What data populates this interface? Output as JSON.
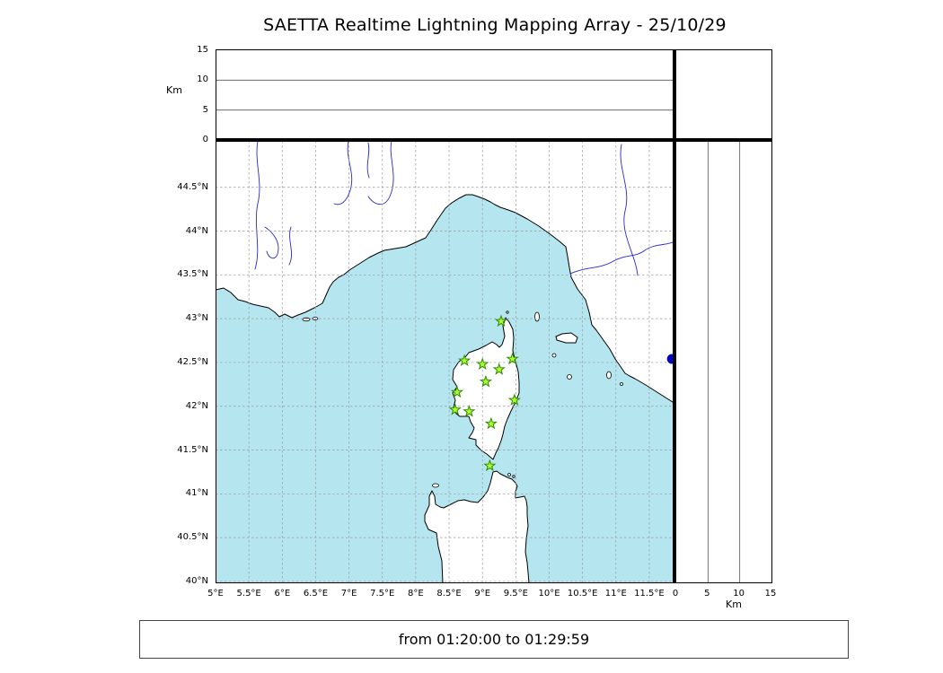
{
  "title": "SAETTA Realtime Lightning Mapping Array - 25/10/29",
  "footer": {
    "text": "from 01:20:00 to 01:29:59"
  },
  "chart_data": {
    "type": "map",
    "title": "SAETTA Realtime Lightning Mapping Array - 25/10/29",
    "time_window": {
      "from": "01:20:00",
      "to": "01:29:59"
    },
    "map": {
      "lon_ticks": [
        5,
        5.5,
        6,
        6.5,
        7,
        7.5,
        8,
        8.5,
        9,
        9.5,
        10,
        10.5,
        11,
        11.5
      ],
      "lon_tick_labels": [
        "5°E",
        "5.5°E",
        "6°E",
        "6.5°E",
        "7°E",
        "7.5°E",
        "8°E",
        "8.5°E",
        "9°E",
        "9.5°E",
        "10°E",
        "10.5°E",
        "11°E",
        "11.5°E"
      ],
      "lat_ticks": [
        40,
        40.5,
        41,
        41.5,
        42,
        42.5,
        43,
        43.5,
        44,
        44.5
      ],
      "lat_tick_labels": [
        "40°N",
        "40.5°N",
        "41°N",
        "41.5°N",
        "42°N",
        "42.5°N",
        "43°N",
        "43.5°N",
        "44°N",
        "44.5°N"
      ],
      "lon_range": [
        5.0,
        11.89
      ],
      "lat_range": [
        40.0,
        45.03
      ],
      "grid": "dashed 0.5 degree",
      "sea_color": "#b5e6f0",
      "land_color": "#ffffff",
      "coast_color": "#000000",
      "river_color": "#2a2ad0"
    },
    "altitude_axis": {
      "label": "Km",
      "ticks": [
        0,
        5,
        10,
        15
      ],
      "gridlines_km": [
        5,
        10
      ],
      "range": [
        0,
        15
      ]
    },
    "stations": {
      "marker": "star",
      "color": "#adff2f",
      "edge_color": "#2e8b00",
      "positions": [
        {
          "lon": 9.28,
          "lat": 42.97
        },
        {
          "lon": 8.73,
          "lat": 42.52
        },
        {
          "lon": 9.0,
          "lat": 42.48
        },
        {
          "lon": 9.25,
          "lat": 42.42
        },
        {
          "lon": 9.45,
          "lat": 42.54
        },
        {
          "lon": 9.05,
          "lat": 42.28
        },
        {
          "lon": 8.62,
          "lat": 42.16
        },
        {
          "lon": 9.48,
          "lat": 42.07
        },
        {
          "lon": 8.59,
          "lat": 41.96
        },
        {
          "lon": 8.8,
          "lat": 41.94
        },
        {
          "lon": 9.13,
          "lat": 41.8
        },
        {
          "lon": 9.11,
          "lat": 41.32
        }
      ]
    },
    "events": [
      {
        "lon": 11.84,
        "lat": 42.54,
        "color": "#0000cd"
      }
    ]
  }
}
